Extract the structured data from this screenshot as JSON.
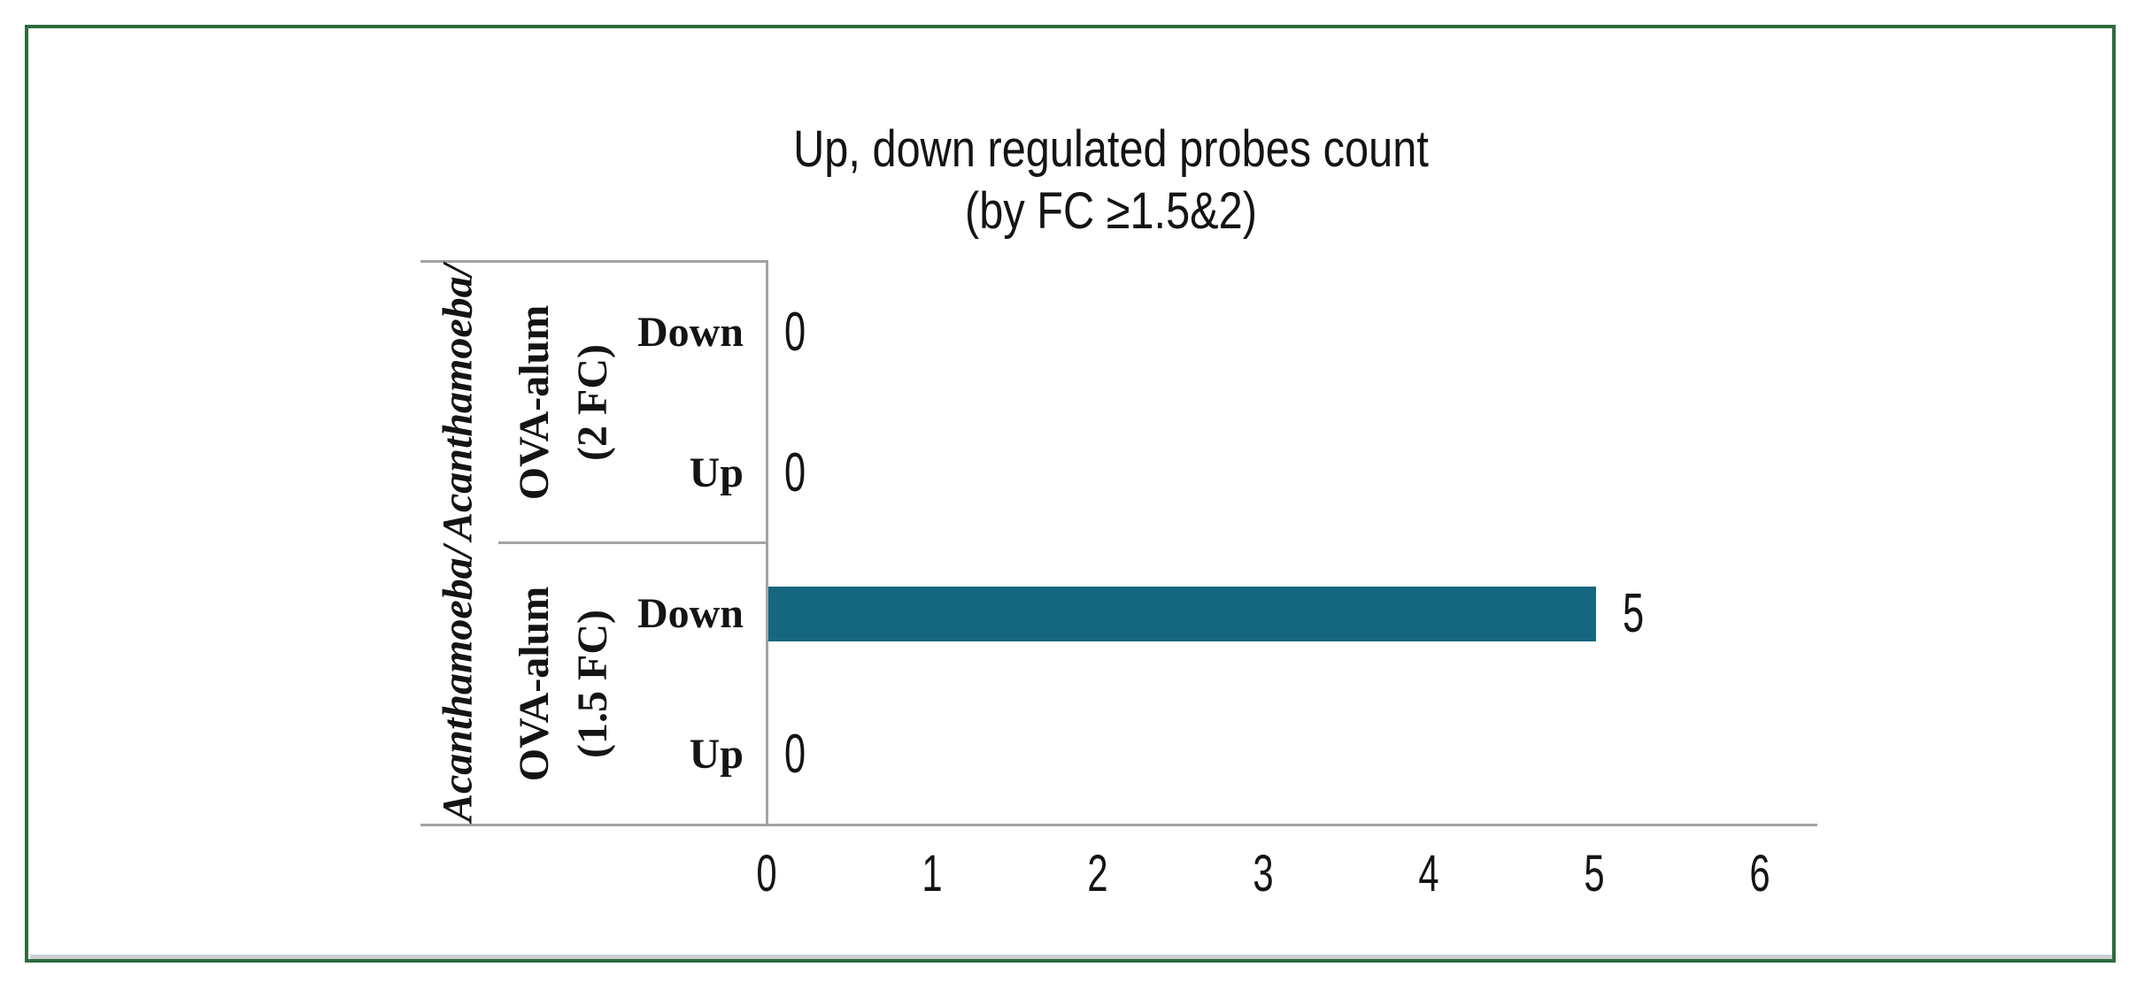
{
  "title": {
    "line1": "Up, down regulated probes count",
    "line2": "(by FC ≥1.5&2)"
  },
  "colors": {
    "bar": "#15677F",
    "axis": "#A3A3A3",
    "frame": "#2F6B40",
    "bottom_strip": "#CBD1D3"
  },
  "chart_data": {
    "type": "bar",
    "orientation": "horizontal",
    "title": "Up, down regulated probes count (by FC ≥1.5&2)",
    "xlim": [
      0,
      6
    ],
    "x_ticks": [
      0,
      1,
      2,
      3,
      4,
      5,
      6
    ],
    "grid": false,
    "legend": "none",
    "value_labels_shown": true,
    "bar_color": "#15677F",
    "axis_color": "#A3A3A3",
    "groups": [
      {
        "group_label_italic": "Acanthamoeba/",
        "group_label_line1": "OVA-alum",
        "group_label_line2": "(2 FC)",
        "rows": [
          {
            "category": "Down",
            "value": 0,
            "value_label": "0"
          },
          {
            "category": "Up",
            "value": 0,
            "value_label": "0"
          }
        ]
      },
      {
        "group_label_italic": "Acanthamoeba/",
        "group_label_line1": "OVA-alum",
        "group_label_line2": "(1.5 FC)",
        "rows": [
          {
            "category": "Down",
            "value": 5,
            "value_label": "5"
          },
          {
            "category": "Up",
            "value": 0,
            "value_label": "0"
          }
        ]
      }
    ]
  }
}
